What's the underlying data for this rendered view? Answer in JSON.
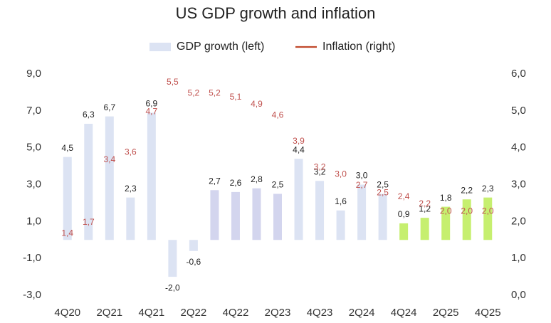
{
  "chart_data": {
    "type": "bar_line",
    "title": "US GDP growth and inflation",
    "categories": [
      "4Q20",
      null,
      "2Q21",
      null,
      "4Q21",
      null,
      "2Q22",
      null,
      "4Q22",
      null,
      "2Q23",
      null,
      "4Q23",
      null,
      "2Q24",
      null,
      "4Q24",
      null,
      "2Q25",
      null,
      "4Q25"
    ],
    "series": [
      {
        "name": "GDP growth (left)",
        "type": "bar",
        "axis": "y",
        "color": "#dce3f3",
        "colors": [
          "#dce3f3",
          "#dce3f3",
          "#dce3f3",
          "#dce3f3",
          "#dce3f3",
          "#dce3f3",
          "#dce3f3",
          "#d3d5ee",
          "#d3d5ee",
          "#d3d5ee",
          "#d3d5ee",
          "#dce3f3",
          "#dce3f3",
          "#dce3f3",
          "#dce3f3",
          "#dce3f3",
          "#c6ef6f",
          "#c6ef6f",
          "#c6ef6f",
          "#c6ef6f",
          "#c6ef6f"
        ],
        "values": [
          4.5,
          6.3,
          6.7,
          2.3,
          6.9,
          -2.0,
          -0.6,
          2.7,
          2.6,
          2.8,
          2.5,
          4.4,
          3.2,
          1.6,
          3.0,
          2.5,
          0.9,
          1.2,
          1.8,
          2.2,
          2.3
        ],
        "value_labels": [
          "4,5",
          "6,3",
          "6,7",
          "2,3",
          "6,9",
          "-2,0",
          "-0,6",
          "2,7",
          "2,6",
          "2,8",
          "2,5",
          "4,4",
          "3,2",
          "1,6",
          "3,0",
          "2,5",
          "0,9",
          "1,2",
          "1,8",
          "2,2",
          "2,3"
        ]
      },
      {
        "name": "Inflation (right)",
        "type": "line",
        "axis": "y2",
        "color": "#c0482b",
        "values": [
          1.4,
          1.7,
          3.4,
          3.6,
          4.7,
          5.5,
          5.2,
          5.2,
          5.1,
          4.9,
          4.6,
          3.9,
          3.2,
          3.0,
          2.7,
          2.5,
          2.4,
          2.2,
          2.0,
          2.0,
          2.0
        ],
        "value_labels": [
          "1,4",
          "1,7",
          "3,4",
          "3,6",
          "4,7",
          "5,5",
          "5,2",
          "5,2",
          "5,1",
          "4,9",
          "4,6",
          "3,9",
          "3,2",
          "3,0",
          "2,7",
          "2,5",
          "2,4",
          "2,2",
          "2,0",
          "2,0",
          "2,0"
        ]
      }
    ],
    "ylim": [
      -3,
      9
    ],
    "yticks": [
      {
        "value": -3,
        "label": "-3,0"
      },
      {
        "value": -1,
        "label": "-1,0"
      },
      {
        "value": 1,
        "label": "1,0"
      },
      {
        "value": 3,
        "label": "3,0"
      },
      {
        "value": 5,
        "label": "5,0"
      },
      {
        "value": 7,
        "label": "7,0"
      },
      {
        "value": 9,
        "label": "9,0"
      }
    ],
    "y2lim": [
      0,
      6
    ],
    "y2ticks": [
      {
        "value": 0,
        "label": "0,0"
      },
      {
        "value": 1,
        "label": "1,0"
      },
      {
        "value": 2,
        "label": "2,0"
      },
      {
        "value": 3,
        "label": "3,0"
      },
      {
        "value": 4,
        "label": "4,0"
      },
      {
        "value": 5,
        "label": "5,0"
      },
      {
        "value": 6,
        "label": "6,0"
      }
    ],
    "grid": false,
    "legend": "top"
  }
}
